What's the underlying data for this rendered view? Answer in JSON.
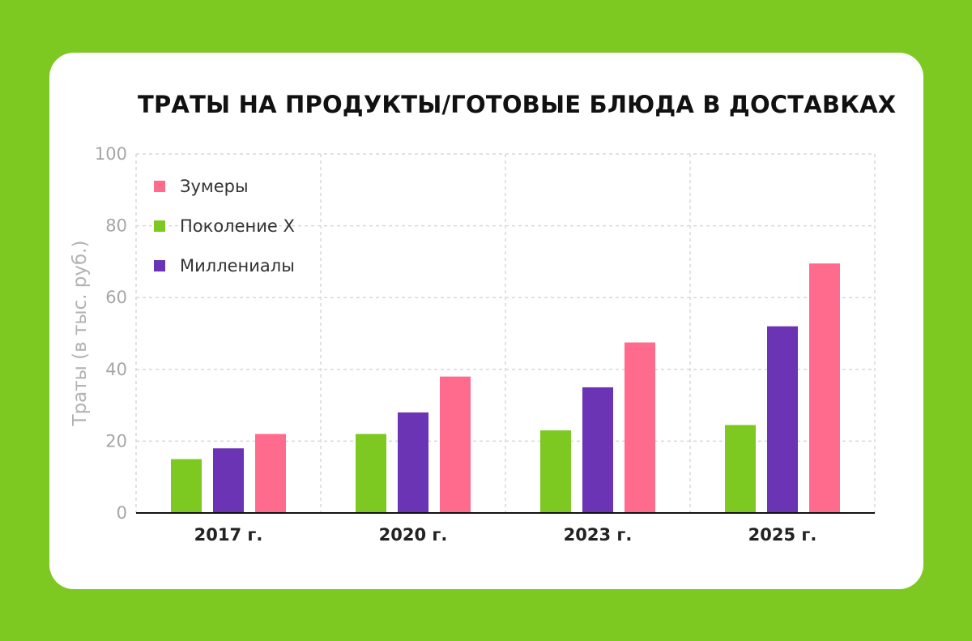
{
  "chart_data": {
    "type": "bar",
    "title": "ТРАТЫ НА ПРОДУКТЫ/ГОТОВЫЕ БЛЮДА В ДОСТАВКАХ",
    "xlabel": "",
    "ylabel": "Траты (в тыс. руб.)",
    "categories": [
      "2017 г.",
      "2020 г.",
      "2023 г.",
      "2025 г."
    ],
    "ylim": [
      0,
      100
    ],
    "yticks": [
      0,
      20,
      40,
      60,
      80,
      100
    ],
    "grid": true,
    "legend_position": "top-left",
    "series": [
      {
        "name": "Поколение X",
        "color": "#7dc921",
        "values": [
          15,
          22,
          23,
          24.5
        ]
      },
      {
        "name": "Миллениалы",
        "color": "#6b34b5",
        "values": [
          18,
          28,
          35,
          52
        ]
      },
      {
        "name": "Зумеры",
        "color": "#ff6b8c",
        "values": [
          22,
          38,
          47.5,
          69.5
        ]
      }
    ],
    "legend_order": [
      "Зумеры",
      "Поколение X",
      "Миллениалы"
    ]
  },
  "colors": {
    "background": "#7dc921",
    "card": "#ffffff",
    "grid": "#d9d9d9",
    "axis": "#111111"
  }
}
